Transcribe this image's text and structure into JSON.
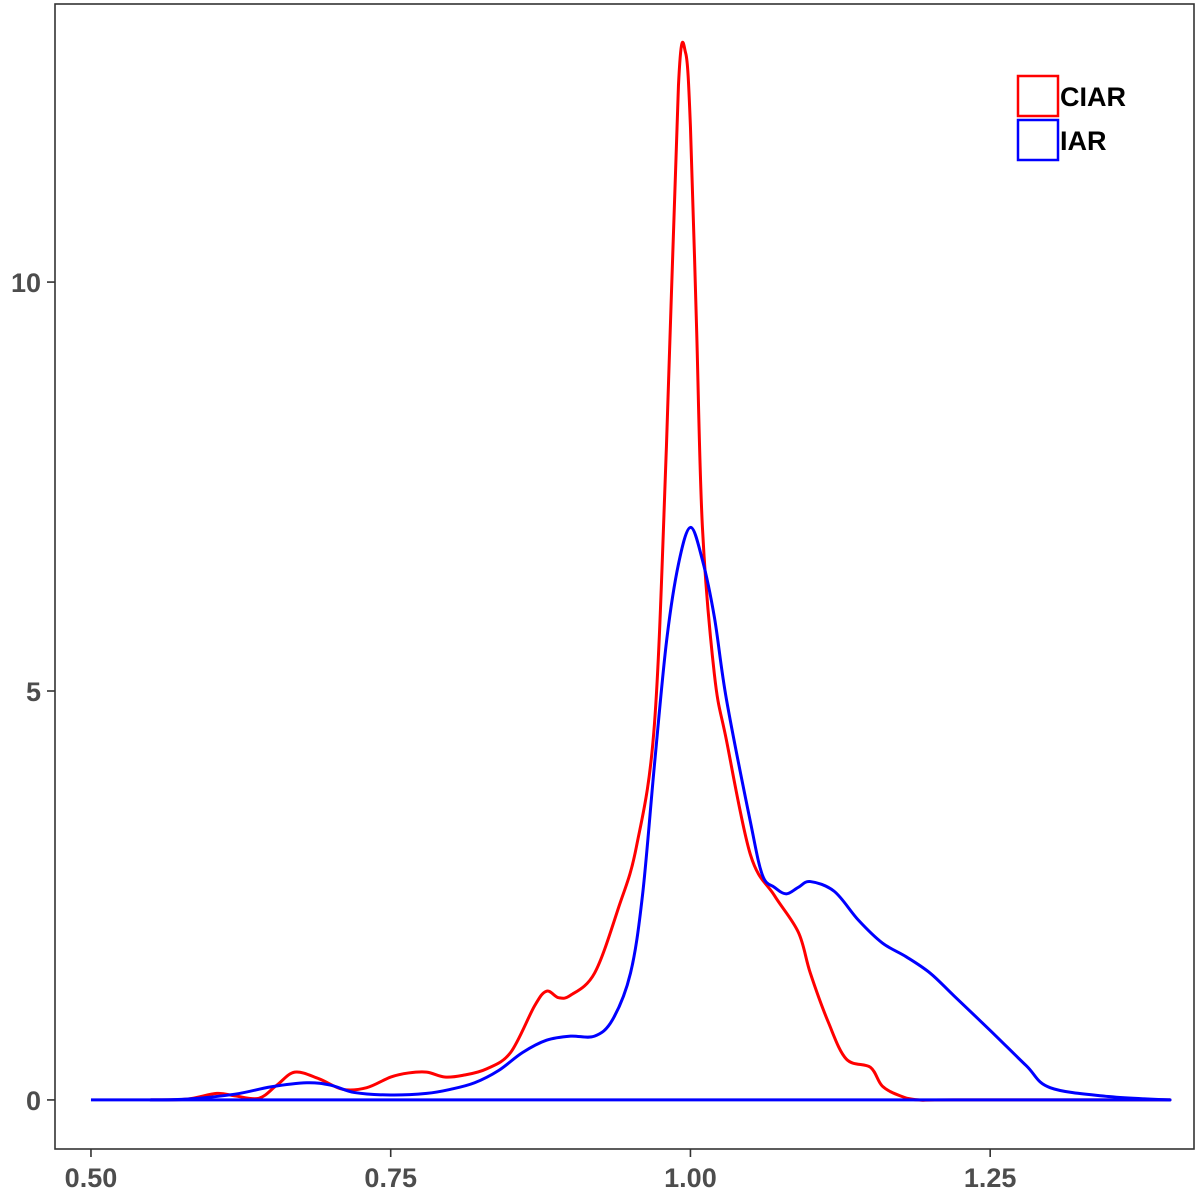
{
  "chart_data": {
    "type": "line",
    "title": "",
    "xlabel": "",
    "ylabel": "",
    "xlim": [
      0.47,
      1.42
    ],
    "ylim": [
      -0.6,
      13.4
    ],
    "x_ticks": [
      0.5,
      0.75,
      1.0,
      1.25
    ],
    "x_tick_labels": [
      "0.50",
      "0.75",
      "1.00",
      "1.25"
    ],
    "y_ticks": [
      0,
      5,
      10
    ],
    "y_tick_labels": [
      "0",
      "5",
      "10"
    ],
    "grid": false,
    "legend_position": "top-right",
    "baseline": {
      "from": 0.5,
      "to": 1.4,
      "y": 0
    },
    "series": [
      {
        "name": "CIAR",
        "color": "#ff0000",
        "x": [
          0.55,
          0.58,
          0.605,
          0.62,
          0.64,
          0.655,
          0.67,
          0.69,
          0.71,
          0.73,
          0.75,
          0.765,
          0.78,
          0.795,
          0.81,
          0.83,
          0.85,
          0.87,
          0.88,
          0.89,
          0.9,
          0.92,
          0.94,
          0.955,
          0.97,
          0.98,
          0.99,
          0.996,
          1.0,
          1.005,
          1.01,
          1.02,
          1.03,
          1.05,
          1.07,
          1.09,
          1.1,
          1.115,
          1.13,
          1.15,
          1.16,
          1.175,
          1.19,
          1.22,
          1.4
        ],
        "y": [
          0,
          0.01,
          0.08,
          0.05,
          0.02,
          0.18,
          0.34,
          0.26,
          0.13,
          0.15,
          0.28,
          0.33,
          0.34,
          0.28,
          0.3,
          0.38,
          0.58,
          1.15,
          1.33,
          1.25,
          1.28,
          1.55,
          2.35,
          3.1,
          4.6,
          8.0,
          12.4,
          12.8,
          11.9,
          9.5,
          7.0,
          5.2,
          4.4,
          3.0,
          2.5,
          2.05,
          1.55,
          0.95,
          0.5,
          0.4,
          0.17,
          0.05,
          0.0,
          0,
          0
        ]
      },
      {
        "name": "IAR",
        "color": "#0000ff",
        "x": [
          0.55,
          0.58,
          0.62,
          0.65,
          0.68,
          0.7,
          0.72,
          0.75,
          0.78,
          0.8,
          0.82,
          0.84,
          0.86,
          0.88,
          0.9,
          0.92,
          0.935,
          0.95,
          0.96,
          0.97,
          0.98,
          0.99,
          1.0,
          1.01,
          1.02,
          1.03,
          1.05,
          1.06,
          1.07,
          1.08,
          1.09,
          1.1,
          1.12,
          1.14,
          1.16,
          1.18,
          1.2,
          1.22,
          1.25,
          1.28,
          1.3,
          1.35,
          1.4
        ],
        "y": [
          0,
          0.01,
          0.07,
          0.16,
          0.21,
          0.18,
          0.09,
          0.06,
          0.08,
          0.13,
          0.21,
          0.36,
          0.58,
          0.73,
          0.78,
          0.78,
          0.98,
          1.55,
          2.5,
          4.1,
          5.6,
          6.55,
          7.0,
          6.6,
          5.9,
          4.9,
          3.4,
          2.75,
          2.6,
          2.52,
          2.6,
          2.67,
          2.55,
          2.2,
          1.92,
          1.75,
          1.55,
          1.27,
          0.85,
          0.42,
          0.15,
          0.04,
          0
        ]
      }
    ]
  }
}
